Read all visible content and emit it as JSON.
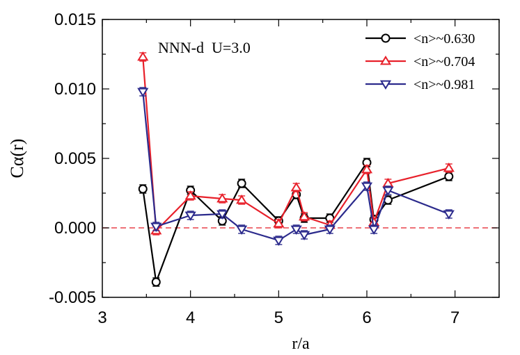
{
  "chart_data": {
    "type": "line",
    "annotation": "NNN-d  U=3.0",
    "xlabel": "r/a",
    "ylabel": "Cα(r)",
    "xlim": [
      3,
      7.5
    ],
    "ylim": [
      -0.005,
      0.015
    ],
    "xticks": [
      3,
      4,
      5,
      6,
      7
    ],
    "xtick_labels": [
      "3",
      "4",
      "5",
      "6",
      "7"
    ],
    "yticks": [
      -0.005,
      0.0,
      0.005,
      0.01,
      0.015
    ],
    "ytick_labels": [
      "-0.005",
      "0.000",
      "0.005",
      "0.010",
      "0.015"
    ],
    "reference_line": {
      "y": 0.0,
      "style": "dashed",
      "color": "#e8424a"
    },
    "legend_position": "top-right",
    "series": [
      {
        "name": "<n>~0.630",
        "color": "#000000",
        "marker": "circle",
        "x": [
          3.46,
          3.61,
          4.0,
          4.36,
          4.58,
          5.0,
          5.2,
          5.29,
          5.58,
          6.0,
          6.08,
          6.24,
          6.93
        ],
        "y": [
          0.0028,
          -0.0039,
          0.0027,
          0.0005,
          0.0032,
          0.0005,
          0.0024,
          0.0007,
          0.0007,
          0.0047,
          0.0006,
          0.002,
          0.0037
        ]
      },
      {
        "name": "<n>~0.704",
        "color": "#e8202a",
        "marker": "triangle-up",
        "x": [
          3.46,
          3.61,
          4.0,
          4.36,
          4.58,
          5.0,
          5.2,
          5.29,
          5.58,
          6.0,
          6.08,
          6.24,
          6.93
        ],
        "y": [
          0.0123,
          -0.0002,
          0.0023,
          0.0021,
          0.002,
          0.0003,
          0.0029,
          0.0008,
          0.0002,
          0.0042,
          0.0004,
          0.0032,
          0.0043
        ]
      },
      {
        "name": "<n>~0.981",
        "color": "#2b2a8c",
        "marker": "triangle-down",
        "x": [
          3.46,
          3.61,
          4.0,
          4.36,
          4.58,
          5.0,
          5.2,
          5.29,
          5.58,
          6.0,
          6.08,
          6.24,
          6.93
        ],
        "y": [
          0.0098,
          0.0001,
          0.0009,
          0.001,
          -0.0001,
          -0.0009,
          -0.0001,
          -0.0005,
          -0.0001,
          0.003,
          -0.0001,
          0.0027,
          0.001
        ]
      }
    ]
  }
}
